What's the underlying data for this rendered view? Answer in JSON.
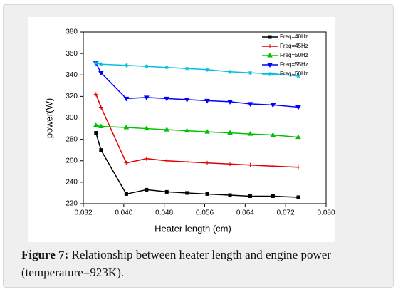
{
  "chart_data": {
    "type": "line",
    "x_label": "Heater length (cm)",
    "y_label": "power(W)",
    "x": [
      0.0345,
      0.0355,
      0.0405,
      0.0445,
      0.0485,
      0.0525,
      0.0565,
      0.061,
      0.065,
      0.0695,
      0.0745
    ],
    "series": [
      {
        "name": "Freq=40Hz",
        "color": "#000000",
        "marker": "square",
        "values": [
          286,
          270,
          229,
          233,
          231,
          230,
          229,
          228,
          227,
          227,
          226
        ]
      },
      {
        "name": "Freq=45Hz",
        "color": "#e00000",
        "marker": "plus",
        "values": [
          322,
          310,
          258,
          262,
          260,
          259,
          258,
          257,
          256,
          255,
          254
        ]
      },
      {
        "name": "Freq=50Hz",
        "color": "#00c000",
        "marker": "triangle",
        "values": [
          293,
          292,
          291,
          290,
          289,
          288,
          287,
          286,
          285,
          284,
          282
        ]
      },
      {
        "name": "Freq=55Hz",
        "color": "#0000ff",
        "marker": "triangle-down",
        "values": [
          351,
          342,
          318,
          319,
          318,
          317,
          316,
          315,
          313,
          312,
          310
        ]
      },
      {
        "name": "Freq=60Hz",
        "color": "#00bfe0",
        "marker": "star",
        "values": [
          351,
          350,
          349,
          348,
          347,
          346,
          345,
          343,
          342,
          341,
          339
        ]
      }
    ],
    "xlim": [
      0.032,
      0.08
    ],
    "xticks": [
      0.032,
      {
        "value": 0.04,
        "label": "0.040"
      },
      0.048,
      0.056,
      0.064,
      0.072,
      {
        "value": 0.08,
        "label": "0.080"
      }
    ],
    "ylim": [
      220,
      380
    ],
    "yticks": [
      220,
      240,
      260,
      280,
      300,
      320,
      340,
      360,
      380
    ],
    "legend": "top-right"
  },
  "caption": {
    "label": "Figure 7:",
    "text": "Relationship between heater length and engine power (temperature=923K)."
  }
}
